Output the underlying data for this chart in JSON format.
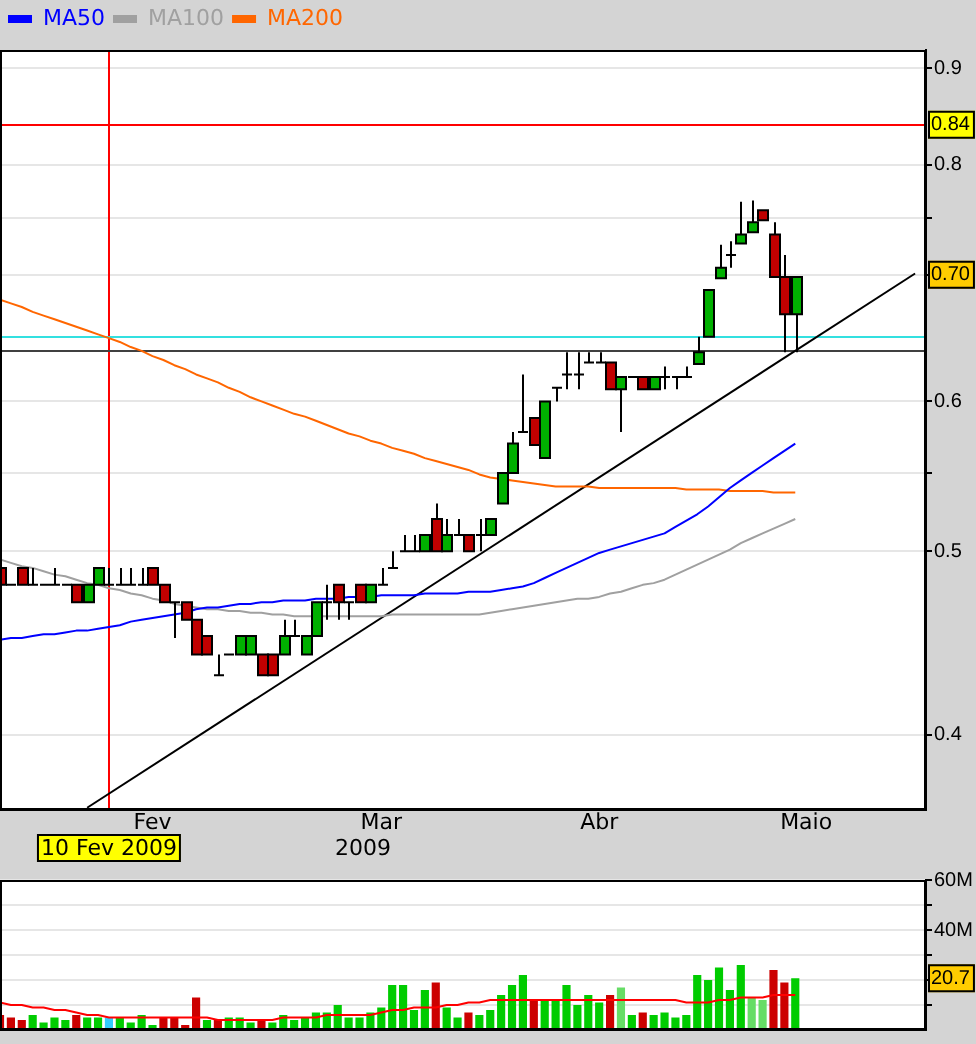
{
  "chart_data": [
    {
      "type": "candlestick",
      "xlabel": "2009",
      "log": true,
      "grid": "y",
      "legend": "top left",
      "marker": "none",
      "line_style": "solid",
      "categories": [
        null,
        null,
        null,
        null,
        null,
        null,
        null,
        null,
        null,
        null,
        "10 Fev 2009",
        null,
        null,
        null,
        "Fev",
        null,
        null,
        null,
        null,
        null,
        null,
        null,
        null,
        null,
        null,
        null,
        null,
        null,
        null,
        null,
        null,
        null,
        null,
        null,
        null,
        "Mar",
        null,
        null,
        null,
        null,
        null,
        null,
        null,
        null,
        null,
        null,
        null,
        null,
        null,
        null,
        null,
        null,
        null,
        null,
        null,
        "Abr",
        null,
        null,
        null,
        null,
        null,
        null,
        null,
        null,
        null,
        null,
        null,
        null,
        null,
        null,
        null,
        null,
        null,
        null,
        "Maio",
        null,
        null,
        null,
        null,
        null,
        null,
        null,
        null,
        null,
        null,
        null
      ],
      "ohlc": [
        [
          0.49,
          0.49,
          0.48,
          0.48
        ],
        [
          0.48,
          0.48,
          0.48,
          0.48
        ],
        [
          0.49,
          0.49,
          0.48,
          0.48
        ],
        [
          0.48,
          0.49,
          0.48,
          0.48
        ],
        [
          0.48,
          0.48,
          0.48,
          0.48
        ],
        [
          0.48,
          0.49,
          0.48,
          0.48
        ],
        [
          0.48,
          0.48,
          0.48,
          0.48
        ],
        [
          0.48,
          0.48,
          0.47,
          0.47
        ],
        [
          0.47,
          0.48,
          0.47,
          0.48
        ],
        [
          0.48,
          0.49,
          0.48,
          0.49
        ],
        [
          0.48,
          0.49,
          0.48,
          0.48
        ],
        [
          0.48,
          0.49,
          0.48,
          0.48
        ],
        [
          0.48,
          0.49,
          0.48,
          0.48
        ],
        [
          0.48,
          0.49,
          0.48,
          0.48
        ],
        [
          0.49,
          0.49,
          0.48,
          0.48
        ],
        [
          0.48,
          0.48,
          0.47,
          0.47
        ],
        [
          0.47,
          0.47,
          0.45,
          0.47
        ],
        [
          0.47,
          0.47,
          0.46,
          0.46
        ],
        [
          0.46,
          0.46,
          0.441,
          0.441
        ],
        [
          0.451,
          0.451,
          0.441,
          0.441
        ],
        [
          0.43,
          0.441,
          0.43,
          0.43
        ],
        [
          0.441,
          0.441,
          0.441,
          0.441
        ],
        [
          0.441,
          0.451,
          0.441,
          0.451
        ],
        [
          0.441,
          0.451,
          0.441,
          0.451
        ],
        [
          0.441,
          0.441,
          0.43,
          0.43
        ],
        [
          0.441,
          0.441,
          0.43,
          0.43
        ],
        [
          0.441,
          0.46,
          0.441,
          0.451
        ],
        [
          0.451,
          0.46,
          0.451,
          0.451
        ],
        [
          0.441,
          0.451,
          0.441,
          0.451
        ],
        [
          0.451,
          0.47,
          0.451,
          0.47
        ],
        [
          0.47,
          0.48,
          0.46,
          0.47
        ],
        [
          0.48,
          0.48,
          0.46,
          0.47
        ],
        [
          0.47,
          0.47,
          0.46,
          0.47
        ],
        [
          0.48,
          0.48,
          0.47,
          0.47
        ],
        [
          0.47,
          0.48,
          0.47,
          0.48
        ],
        [
          0.48,
          0.49,
          0.48,
          0.48
        ],
        [
          0.49,
          0.5,
          0.49,
          0.49
        ],
        [
          0.5,
          0.51,
          0.5,
          0.5
        ],
        [
          0.5,
          0.51,
          0.5,
          0.5
        ],
        [
          0.5,
          0.51,
          0.5,
          0.51
        ],
        [
          0.52,
          0.53,
          0.5,
          0.5
        ],
        [
          0.5,
          0.52,
          0.5,
          0.51
        ],
        [
          0.51,
          0.52,
          0.51,
          0.51
        ],
        [
          0.51,
          0.51,
          0.5,
          0.5
        ],
        [
          0.51,
          0.52,
          0.5,
          0.51
        ],
        [
          0.51,
          0.52,
          0.51,
          0.52
        ],
        [
          0.53,
          0.55,
          0.53,
          0.55
        ],
        [
          0.55,
          0.578,
          0.55,
          0.57
        ],
        [
          0.578,
          0.62,
          0.578,
          0.578
        ],
        [
          0.588,
          0.588,
          0.569,
          0.569
        ],
        [
          0.56,
          0.6,
          0.56,
          0.6
        ],
        [
          0.61,
          0.61,
          0.6,
          0.61
        ],
        [
          0.62,
          0.637,
          0.609,
          0.62
        ],
        [
          0.62,
          0.637,
          0.609,
          0.62
        ],
        [
          0.629,
          0.637,
          0.629,
          0.629
        ],
        [
          0.629,
          0.637,
          0.629,
          0.629
        ],
        [
          0.629,
          0.629,
          0.609,
          0.609
        ],
        [
          0.609,
          0.618,
          0.578,
          0.618
        ],
        [
          0.618,
          0.618,
          0.618,
          0.618
        ],
        [
          0.618,
          0.618,
          0.609,
          0.609
        ],
        [
          0.609,
          0.618,
          0.609,
          0.618
        ],
        [
          0.618,
          0.626,
          0.609,
          0.618
        ],
        [
          0.618,
          0.618,
          0.609,
          0.618
        ],
        [
          0.618,
          0.626,
          0.618,
          0.618
        ],
        [
          0.628,
          0.649,
          0.628,
          0.637
        ],
        [
          0.649,
          0.687,
          0.649,
          0.687
        ],
        [
          0.697,
          0.726,
          0.697,
          0.706
        ],
        [
          0.717,
          0.729,
          0.706,
          0.717
        ],
        [
          0.727,
          0.765,
          0.727,
          0.735
        ],
        [
          0.737,
          0.766,
          0.737,
          0.746
        ],
        [
          0.757,
          0.757,
          0.748,
          0.748
        ],
        [
          0.735,
          0.746,
          0.698,
          0.698
        ],
        [
          0.698,
          0.717,
          0.637,
          0.667
        ],
        [
          0.667,
          0.698,
          0.637,
          0.698
        ],
        null,
        null,
        null,
        null,
        null,
        null,
        null,
        null,
        null,
        null,
        null,
        null
      ],
      "colors": [
        "#c00000",
        "#000000",
        "#c00000",
        "#000000",
        "#000000",
        "#000000",
        "#000000",
        "#c00000",
        "#00b000",
        "#00b000",
        "#000000",
        "#000000",
        "#000000",
        "#000000",
        "#c00000",
        "#c00000",
        "#000000",
        "#c00000",
        "#c00000",
        "#c00000",
        "#000000",
        "#000000",
        "#00b000",
        "#00b000",
        "#c00000",
        "#c00000",
        "#00b000",
        "#000000",
        "#00b000",
        "#00b000",
        "#000000",
        "#c00000",
        "#000000",
        "#c00000",
        "#00b000",
        "#000000",
        "#000000",
        "#000000",
        "#000000",
        "#00b000",
        "#c00000",
        "#00b000",
        "#000000",
        "#c00000",
        "#000000",
        "#00b000",
        "#00b000",
        "#00b000",
        "#000000",
        "#c00000",
        "#00b000",
        "#000000",
        "#000000",
        "#000000",
        "#000000",
        "#000000",
        "#c00000",
        "#00b000",
        "#000000",
        "#c00000",
        "#00b000",
        "#000000",
        "#000000",
        "#000000",
        "#00b000",
        "#00b000",
        "#00b000",
        "#000000",
        "#00b000",
        "#00b000",
        "#c00000",
        "#c00000",
        "#c00000",
        "#00b000",
        null,
        null,
        null,
        null,
        null,
        null,
        null,
        null,
        null,
        null,
        null,
        null
      ],
      "series": [
        {
          "name": "MA50",
          "type": "line",
          "color": "#0000ff",
          "values": [
            0.449,
            0.45,
            0.45,
            0.451,
            0.452,
            0.452,
            0.453,
            0.454,
            0.454,
            0.455,
            0.456,
            0.457,
            0.459,
            0.46,
            0.461,
            0.462,
            0.463,
            0.464,
            0.466,
            0.467,
            0.467,
            0.468,
            0.469,
            0.469,
            0.47,
            0.47,
            0.471,
            0.471,
            0.471,
            0.472,
            0.472,
            0.472,
            0.473,
            0.473,
            0.473,
            0.474,
            0.474,
            0.474,
            0.474,
            0.475,
            0.475,
            0.475,
            0.475,
            0.476,
            0.476,
            0.476,
            0.477,
            0.478,
            0.479,
            0.481,
            0.484,
            0.487,
            0.49,
            0.493,
            0.496,
            0.499,
            0.501,
            0.503,
            0.505,
            0.507,
            0.509,
            0.511,
            0.515,
            0.519,
            0.523,
            0.528,
            0.534,
            0.54,
            0.545,
            0.55,
            0.555,
            0.56,
            0.565,
            0.57,
            null,
            null,
            null,
            null,
            null,
            null,
            null,
            null,
            null,
            null,
            null,
            null
          ]
        },
        {
          "name": "MA100",
          "type": "line",
          "color": "#a0a0a0",
          "values": [
            0.495,
            0.493,
            0.491,
            0.49,
            0.488,
            0.486,
            0.485,
            0.483,
            0.481,
            0.48,
            0.478,
            0.477,
            0.475,
            0.474,
            0.472,
            0.471,
            0.469,
            0.468,
            0.467,
            0.466,
            0.466,
            0.465,
            0.465,
            0.464,
            0.464,
            0.463,
            0.463,
            0.462,
            0.462,
            0.462,
            0.462,
            0.462,
            0.462,
            0.462,
            0.462,
            0.462,
            0.463,
            0.463,
            0.463,
            0.463,
            0.463,
            0.463,
            0.463,
            0.463,
            0.463,
            0.464,
            0.465,
            0.466,
            0.467,
            0.468,
            0.469,
            0.47,
            0.471,
            0.472,
            0.472,
            0.473,
            0.475,
            0.476,
            0.478,
            0.48,
            0.481,
            0.483,
            0.486,
            0.489,
            0.492,
            0.495,
            0.498,
            0.501,
            0.505,
            0.508,
            0.511,
            0.514,
            0.517,
            0.52,
            null,
            null,
            null,
            null,
            null,
            null,
            null,
            null,
            null,
            null,
            null,
            null
          ]
        },
        {
          "name": "MA200",
          "type": "line",
          "color": "#ff6600",
          "values": [
            0.679,
            0.676,
            0.673,
            0.669,
            0.666,
            0.663,
            0.66,
            0.657,
            0.654,
            0.651,
            0.648,
            0.645,
            0.641,
            0.638,
            0.634,
            0.631,
            0.627,
            0.624,
            0.62,
            0.617,
            0.614,
            0.61,
            0.607,
            0.603,
            0.6,
            0.597,
            0.594,
            0.591,
            0.589,
            0.586,
            0.583,
            0.58,
            0.577,
            0.575,
            0.572,
            0.57,
            0.567,
            0.565,
            0.563,
            0.56,
            0.558,
            0.556,
            0.554,
            0.552,
            0.549,
            0.547,
            0.546,
            0.545,
            0.544,
            0.543,
            0.542,
            0.541,
            0.541,
            0.541,
            0.541,
            0.54,
            0.54,
            0.54,
            0.54,
            0.54,
            0.54,
            0.54,
            0.54,
            0.539,
            0.539,
            0.539,
            0.539,
            0.538,
            0.538,
            0.538,
            0.538,
            0.537,
            0.537,
            0.537,
            null,
            null,
            null,
            null,
            null,
            null,
            null,
            null,
            null,
            null,
            null,
            null
          ]
        },
        {
          "type": "line",
          "color": "#000000",
          "values": [
            null,
            null,
            null,
            null,
            null,
            null,
            null,
            null,
            0.366,
            null,
            null,
            null,
            null,
            null,
            null,
            null,
            null,
            null,
            null,
            null,
            null,
            null,
            null,
            null,
            null,
            null,
            null,
            null,
            null,
            null,
            null,
            null,
            null,
            null,
            null,
            null,
            null,
            null,
            null,
            null,
            null,
            null,
            null,
            null,
            null,
            null,
            null,
            null,
            null,
            null,
            null,
            null,
            null,
            null,
            null,
            null,
            null,
            null,
            null,
            null,
            null,
            null,
            null,
            null,
            null,
            null,
            null,
            null,
            null,
            null,
            null,
            null,
            null,
            null,
            null,
            null,
            null,
            null,
            null,
            null,
            null,
            null,
            null,
            null,
            0.701,
            null
          ]
        }
      ],
      "ylim": [
        0.365,
        0.92
      ],
      "yticks": [
        0.4,
        0.5,
        {
          "value": 0.55,
          "label": null
        },
        0.6,
        {
          "value": 0.7,
          "label": null
        },
        {
          "value": 0.75,
          "label": null
        },
        0.8,
        0.9
      ],
      "ref_lines": [
        {
          "axis": "x",
          "value": "10 Fev 2009",
          "color": "#ff0000"
        },
        {
          "axis": "y",
          "value": 0.84,
          "label": "0.84",
          "color": "#ff0000"
        },
        {
          "axis": "y",
          "value": 0.649,
          "color": "#33e0e0"
        },
        {
          "axis": "y",
          "value": 0.638,
          "color": "#404040"
        }
      ],
      "annotations": [
        {
          "text": "0.70",
          "y": 0.7
        }
      ]
    },
    {
      "type": "bar",
      "tick_labels": "y",
      "grid": "y",
      "marker": "none",
      "categories": [
        null,
        null,
        null,
        null,
        null,
        null,
        null,
        null,
        null,
        null,
        null,
        null,
        null,
        null,
        null,
        null,
        null,
        null,
        null,
        null,
        null,
        null,
        null,
        null,
        null,
        null,
        null,
        null,
        null,
        null,
        null,
        null,
        null,
        null,
        null,
        null,
        null,
        null,
        null,
        null,
        null,
        null,
        null,
        null,
        null,
        null,
        null,
        null,
        null,
        null,
        null,
        null,
        null,
        null,
        null,
        null,
        null,
        null,
        null,
        null,
        null,
        null,
        null,
        null,
        null,
        null,
        null,
        null,
        null,
        null,
        null,
        null,
        null,
        null,
        null,
        null,
        null,
        null,
        null,
        null,
        null,
        null,
        null,
        null,
        null,
        null
      ],
      "series": [
        {
          "type": "bar",
          "values": [
            6,
            5,
            4,
            6,
            3,
            5,
            4,
            6,
            5,
            5,
            5,
            5,
            3,
            6,
            2,
            5,
            5,
            2,
            13,
            4,
            4,
            5,
            5,
            3,
            4,
            3,
            6,
            4,
            5,
            7,
            7,
            10,
            5,
            5,
            7,
            9,
            18,
            18,
            8,
            16,
            19,
            9,
            5,
            7,
            6,
            8,
            14,
            18,
            22,
            12,
            12,
            12,
            18,
            10,
            14,
            11,
            14,
            17,
            6,
            7,
            6,
            7,
            5,
            6,
            22,
            20,
            25,
            16,
            26,
            13,
            12,
            24,
            19,
            20.7,
            null,
            null,
            null,
            null,
            null,
            null,
            null,
            null,
            null,
            null,
            null,
            null
          ],
          "colors": [
            "#cc0000",
            "#cc0000",
            "#cc0000",
            "#00cc00",
            "#00cc00",
            "#00cc00",
            "#00cc00",
            "#cc0000",
            "#00cc00",
            "#00cc00",
            "#33ccff",
            "#00cc00",
            "#00cc00",
            "#00cc00",
            "#00cc00",
            "#cc0000",
            "#cc0000",
            "#cc0000",
            "#cc0000",
            "#00cc00",
            "#cc0000",
            "#00cc00",
            "#00cc00",
            "#00cc00",
            "#cc0000",
            "#00cc00",
            "#00cc00",
            "#00cc00",
            "#00cc00",
            "#00cc00",
            "#00cc00",
            "#00cc00",
            "#00cc00",
            "#00cc00",
            "#00cc00",
            "#00cc00",
            "#00cc00",
            "#00cc00",
            "#00cc00",
            "#00cc00",
            "#cc0000",
            "#00cc00",
            "#00cc00",
            "#cc0000",
            "#00cc00",
            "#00cc00",
            "#00cc00",
            "#00cc00",
            "#00cc00",
            "#cc0000",
            "#00cc00",
            "#00cc00",
            "#00cc00",
            "#00cc00",
            "#00cc00",
            "#00cc00",
            "#cc0000",
            "#66dd66",
            "#00cc00",
            "#cc0000",
            "#00cc00",
            "#00cc00",
            "#00cc00",
            "#00cc00",
            "#00cc00",
            "#00cc00",
            "#00cc00",
            "#00cc00",
            "#00cc00",
            "#66dd66",
            "#66dd66",
            "#cc0000",
            "#cc0000",
            "#00cc00",
            null,
            null,
            null,
            null,
            null,
            null,
            null,
            null,
            null,
            null,
            null,
            null
          ]
        },
        {
          "type": "line",
          "color": "#ff0000",
          "values": [
            11,
            10,
            10,
            9,
            9,
            8,
            8,
            7,
            6,
            6,
            5,
            5,
            5,
            5,
            5,
            5,
            5,
            5,
            5,
            5,
            4,
            4,
            4,
            4,
            4,
            4,
            5,
            5,
            5,
            5,
            6,
            6,
            6,
            6,
            6,
            7,
            8,
            8,
            9,
            9,
            9,
            10,
            10,
            11,
            11,
            12,
            12,
            12,
            12,
            12,
            12,
            12,
            12,
            12,
            12,
            12,
            12,
            12,
            12,
            12,
            12,
            12,
            12,
            11,
            11,
            11,
            12,
            12,
            13,
            13,
            13,
            14,
            14,
            14,
            null,
            null,
            null,
            null,
            null,
            null,
            null,
            null,
            null,
            null,
            null,
            null
          ]
        }
      ],
      "ylim": [
        0,
        60
      ],
      "yticks": [
        {
          "value": 10,
          "label": null
        },
        {
          "value": 20,
          "label": null
        },
        {
          "value": 30,
          "label": null
        },
        {
          "value": 40,
          "label": "40M"
        },
        {
          "value": 50,
          "label": null
        },
        {
          "value": 60,
          "label": "60M"
        }
      ],
      "annotations": [
        {
          "text": "20.7",
          "y": 20.7
        }
      ]
    }
  ]
}
